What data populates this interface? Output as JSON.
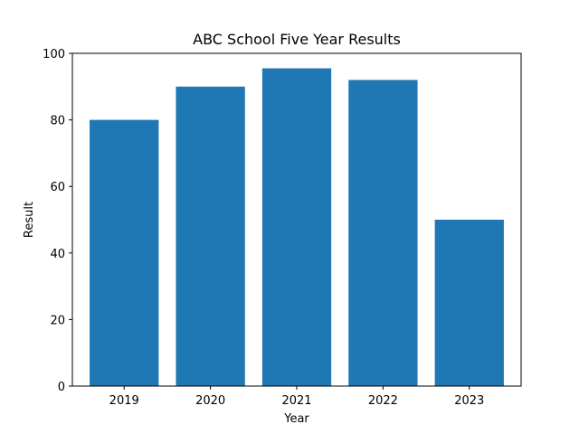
{
  "chart_data": {
    "type": "bar",
    "title": "ABC School Five Year Results",
    "xlabel": "Year",
    "ylabel": "Result",
    "categories": [
      "2019",
      "2020",
      "2021",
      "2022",
      "2023"
    ],
    "values": [
      80,
      90,
      95.5,
      92,
      50
    ],
    "ylim": [
      0,
      100
    ],
    "yticks": [
      0,
      20,
      40,
      60,
      80,
      100
    ],
    "grid": false,
    "legend": "none",
    "bar_color": "#1f77b4"
  }
}
